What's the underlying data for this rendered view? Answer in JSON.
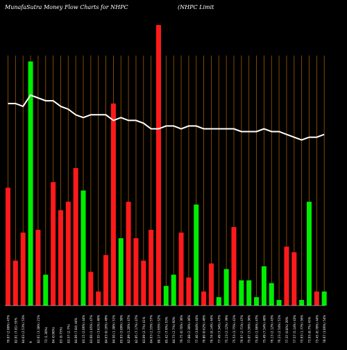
{
  "chart_data": {
    "type": "bar",
    "title": "MunafaSutra  Money Flow  Charts for NHPC",
    "subtitle": "(NHPC Limit",
    "colors": {
      "up": "#00ee00",
      "down": "#ff1a1a",
      "grid": "#a05a00",
      "line": "#ffffff",
      "background": "#000000"
    },
    "ylim": [
      0,
      100
    ],
    "categories": [
      "76.07 (2.00%) 47%",
      "82.01 (7.81) 55%",
      "84.03 (2.53%) 53%",
      "9",
      "82.61 (3.38%) 21%",
      "73 (1.30%)",
      "84 (0.96%)",
      "83 (8.75%)",
      "83.57 (2.7%)",
      "84.06 (7.84) 44%",
      "83.15 (2.06%) 44%",
      "83.60 (1.05%) 47%",
      "83.55 (3.61%) 46%",
      "84.63 (0.16%) 49%",
      "84.50 (1.38%) 51%",
      "85.93 (3.09%) 50%",
      "82.89 (1.20%) 47%",
      "82.95 (7.17%) 47%",
      "83.09 (2.7%) 41%",
      "84.03 (2.55%) 57%",
      "80.17 (1.65%) 52%",
      "85.42 (7.9%) 53%",
      "84.73 (2.7%) 60%",
      "79.75 (0.70%) 36%",
      "77.88 (2.30%) 46%",
      "77.40 (3.84%) 44%",
      "76.80 (0.62%) 46%",
      "76.74 (8.14%) 44%",
      "77.49 (7.34%) 47%",
      "75.13 (2.12%) 39%",
      "75.53 (3.75%) 41%",
      "76.97 (2.71%) 47%",
      "75.07 (3.36%) 36%",
      "75.85 (1.96%) 47%",
      "75.49 (7.54%) 40%",
      "76.13 (2.12%) 43%",
      "76.23 (2.54%) 51%",
      "77.37 (0.8%) 39%",
      "77.57 (5.14%) 43%",
      "75.93 (1.77%) 56%",
      "73.93 (8.7%) 45%",
      "73.45 (0.78%) 44%",
      "78.67 (3.06%) 54%"
    ],
    "bar_values": [
      42,
      16,
      26,
      87,
      27,
      11,
      44,
      34,
      37,
      49,
      41,
      12,
      5,
      18,
      72,
      24,
      37,
      24,
      16,
      27,
      100,
      7,
      11,
      26,
      10,
      36,
      5,
      15,
      3,
      13,
      28,
      9,
      9,
      3,
      14,
      8,
      2,
      21,
      19,
      2,
      37,
      5,
      5
    ],
    "bar_direction": [
      "down",
      "down",
      "down",
      "up",
      "down",
      "up",
      "down",
      "down",
      "down",
      "down",
      "up",
      "down",
      "down",
      "down",
      "down",
      "up",
      "down",
      "down",
      "down",
      "down",
      "down",
      "up",
      "up",
      "down",
      "down",
      "up",
      "down",
      "down",
      "up",
      "up",
      "down",
      "up",
      "up",
      "up",
      "up",
      "up",
      "up",
      "down",
      "down",
      "up",
      "up",
      "down",
      "up"
    ],
    "line_values": [
      72,
      72,
      71,
      75,
      74,
      73,
      73,
      71,
      70,
      68,
      67,
      68,
      68,
      68,
      66,
      67,
      66,
      66,
      65,
      63,
      63,
      64,
      64,
      63,
      64,
      64,
      63,
      63,
      63,
      63,
      63,
      62,
      62,
      62,
      63,
      62,
      62,
      61,
      60,
      59,
      60,
      60,
      61
    ]
  }
}
